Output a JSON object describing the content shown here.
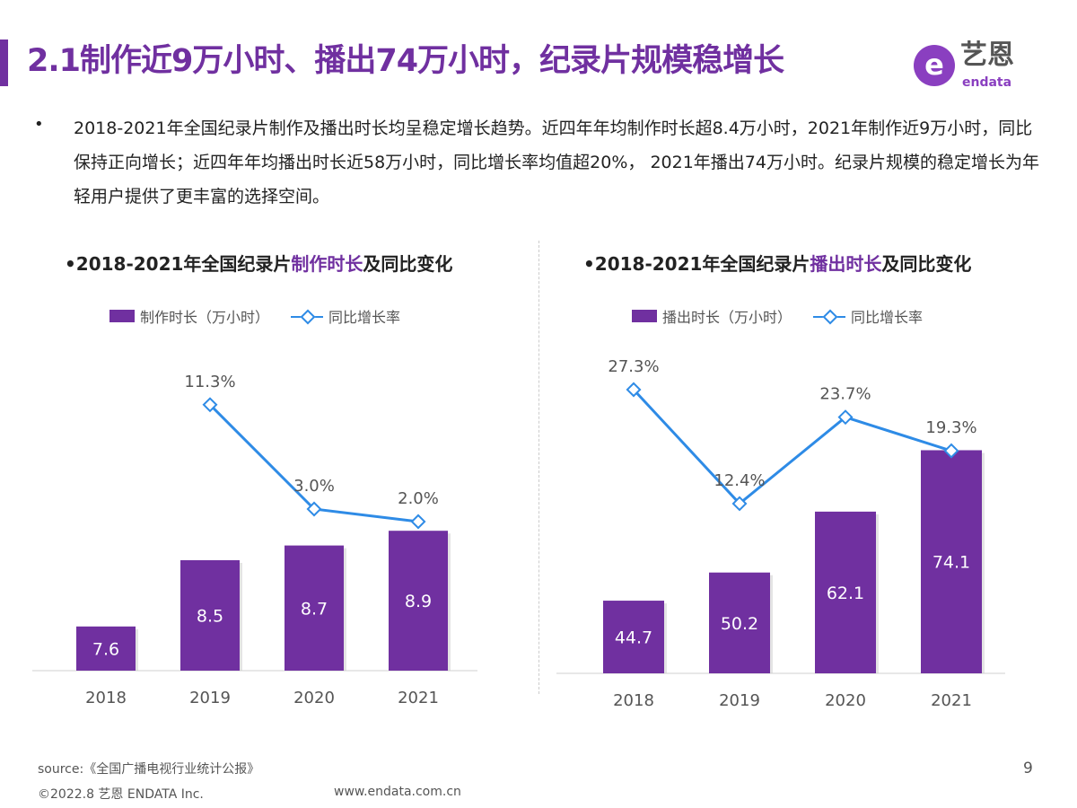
{
  "header": {
    "title": "2.1制作近9万小时、播出74万小时，纪录片规模稳增长",
    "logo": {
      "cn": "艺恩",
      "en": "endata",
      "mark": "e"
    }
  },
  "summary": {
    "bullet": "•",
    "text": "2018-2021年全国纪录片制作及播出时长均呈稳定增长趋势。近四年年均制作时长超8.4万小时，2021年制作近9万小时，同比保持正向增长；近四年年均播出时长近58万小时，同比增长率均值超20%， 2021年播出74万小时。纪录片规模的稳定增长为年轻用户提供了更丰富的选择空间。"
  },
  "colors": {
    "accent": "#7030a0",
    "bar": "#7030a0",
    "line": "#2e8be6"
  },
  "chart_data": [
    {
      "type": "bar+line",
      "title_prefix": "•2018-2021年全国纪录片",
      "title_highlight": "制作时长",
      "title_suffix": "及同比变化",
      "categories": [
        "2018",
        "2019",
        "2020",
        "2021"
      ],
      "series": [
        {
          "name": "制作时长（万小时）",
          "type": "bar",
          "values": [
            7.6,
            8.5,
            8.7,
            8.9
          ],
          "labels": [
            "7.6",
            "8.5",
            "8.7",
            "8.9"
          ]
        },
        {
          "name": "同比增长率",
          "type": "line",
          "values": [
            null,
            11.3,
            3.0,
            2.0
          ],
          "labels": [
            "",
            "11.3%",
            "3.0%",
            "2.0%"
          ]
        }
      ],
      "grid": false,
      "legend": "top"
    },
    {
      "type": "bar+line",
      "title_prefix": "•2018-2021年全国纪录片",
      "title_highlight": "播出时长",
      "title_suffix": "及同比变化",
      "categories": [
        "2018",
        "2019",
        "2020",
        "2021"
      ],
      "series": [
        {
          "name": "播出时长（万小时）",
          "type": "bar",
          "values": [
            44.7,
            50.2,
            62.1,
            74.1
          ],
          "labels": [
            "44.7",
            "50.2",
            "62.1",
            "74.1"
          ]
        },
        {
          "name": "同比增长率",
          "type": "line",
          "values": [
            27.3,
            12.4,
            23.7,
            19.3
          ],
          "labels": [
            "27.3%",
            "12.4%",
            "23.7%",
            "19.3%"
          ]
        }
      ],
      "grid": false,
      "legend": "top"
    }
  ],
  "footer": {
    "source": "source:《全国广播电视行业统计公报》",
    "copyright": "©2022.8 艺恩 ENDATA Inc.",
    "website": "www.endata.com.cn",
    "page_number": "9"
  }
}
